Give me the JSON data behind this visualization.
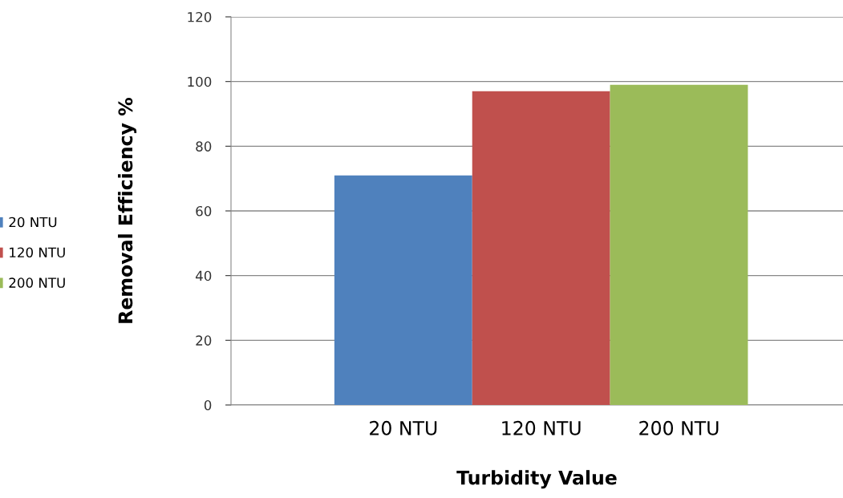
{
  "chart_data": {
    "type": "bar",
    "xlabel": "Turbidity Value",
    "ylabel": "Removal Efficiency %",
    "categories": [
      "20 NTU",
      "120 NTU",
      "200 NTU"
    ],
    "series": [
      {
        "name": "20 NTU",
        "color": "#4f81bd",
        "values": [
          71,
          null,
          null
        ]
      },
      {
        "name": "120 NTU",
        "color": "#c0504d",
        "values": [
          null,
          97,
          null
        ]
      },
      {
        "name": "200 NTU",
        "color": "#9bbb59",
        "values": [
          null,
          null,
          99
        ]
      }
    ],
    "ylim": [
      0,
      120
    ],
    "yticks": [
      0,
      20,
      40,
      60,
      80,
      100,
      120
    ],
    "grid": "y",
    "legend": "left"
  }
}
